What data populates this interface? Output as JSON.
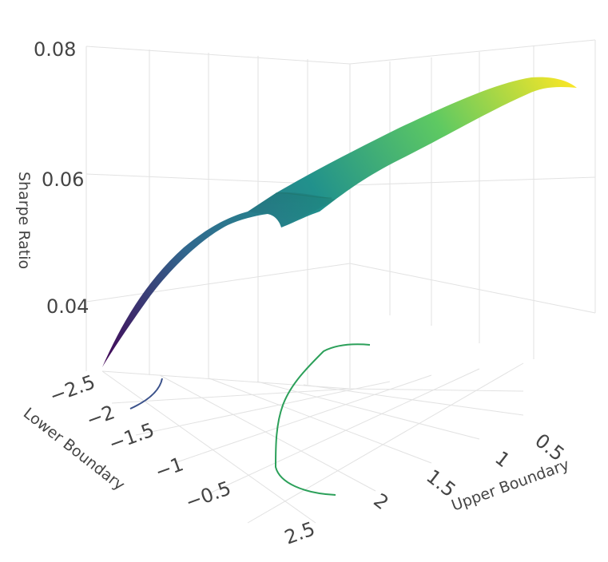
{
  "chart_data": {
    "type": "surface",
    "title": "",
    "xlabel": "Lower Boundary",
    "ylabel": "Upper Boundary",
    "zlabel": "Sharpe Ratio",
    "x_ticks": [
      "−2.5",
      "−2",
      "−1.5",
      "−1",
      "−0.5"
    ],
    "x_ticks_extra": [
      "2.5"
    ],
    "y_ticks": [
      "0.5",
      "1",
      "1.5",
      "2"
    ],
    "z_ticks": [
      "0.08",
      "0.06",
      "0.04"
    ],
    "z_range": [
      0.03,
      0.08
    ],
    "grid": true,
    "colorscale": "viridis",
    "colors": {
      "low": "#440154",
      "mid_low": "#31688e",
      "mid": "#21918c",
      "mid_high": "#5ec962",
      "high": "#fde725",
      "grid": "#e2e2e2",
      "text": "#444444",
      "contour": "#2ca05a"
    },
    "surface_ridge": [
      {
        "upper": 0.5,
        "lower": -2.5,
        "sharpe": 0.033
      },
      {
        "upper": 0.75,
        "lower": -2.0,
        "sharpe": 0.043
      },
      {
        "upper": 1.0,
        "lower": -1.5,
        "sharpe": 0.05
      },
      {
        "upper": 1.25,
        "lower": -1.0,
        "sharpe": 0.056
      },
      {
        "upper": 1.5,
        "lower": -0.5,
        "sharpe": 0.061
      },
      {
        "upper": 1.75,
        "lower": 0.0,
        "sharpe": 0.066
      },
      {
        "upper": 2.0,
        "lower": 0.5,
        "sharpe": 0.071
      },
      {
        "upper": 2.25,
        "lower": 1.0,
        "sharpe": 0.075
      },
      {
        "upper": 2.5,
        "lower": 1.5,
        "sharpe": 0.077
      }
    ]
  }
}
